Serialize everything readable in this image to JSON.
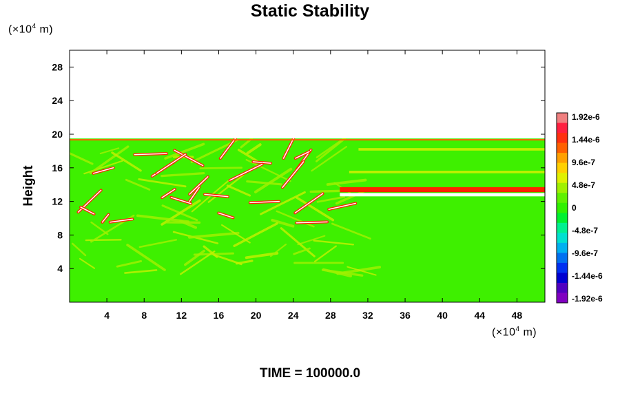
{
  "chart_data": {
    "type": "heatmap",
    "title": "Static Stability",
    "ylabel": "Height",
    "x_unit": {
      "prefix": "(×10",
      "exponent": "4",
      "suffix": " m)"
    },
    "y_unit": {
      "prefix": "(×10",
      "exponent": "4",
      "suffix": " m)"
    },
    "xlim": [
      0,
      51
    ],
    "ylim": [
      0,
      30
    ],
    "x_ticks": [
      4,
      8,
      12,
      16,
      20,
      24,
      28,
      32,
      36,
      40,
      44,
      48
    ],
    "y_ticks": [
      4,
      8,
      12,
      16,
      20,
      24,
      28
    ],
    "field_top": 19.5,
    "colorbar": {
      "labels": [
        "1.92e-6",
        "1.44e-6",
        "9.6e-7",
        "4.8e-7",
        "0",
        "-4.8e-7",
        "-9.6e-7",
        "-1.44e-6",
        "-1.92e-6"
      ],
      "values": [
        1.92e-06,
        1.44e-06,
        9.6e-07,
        4.8e-07,
        0,
        -4.8e-07,
        -9.6e-07,
        -1.44e-06,
        -1.92e-06
      ]
    },
    "features": [
      {
        "kind": "band",
        "x": [
          29,
          51
        ],
        "y": 13.4,
        "thickness": 0.6,
        "color": "#ff2000"
      },
      {
        "kind": "band",
        "x": [
          29,
          51
        ],
        "y": 12.8,
        "thickness": 0.4,
        "color": "#ffffff"
      },
      {
        "kind": "band",
        "x": [
          30,
          51
        ],
        "y": 15.5,
        "thickness": 0.3,
        "color": "#bff000"
      },
      {
        "kind": "band",
        "x": [
          31,
          51
        ],
        "y": 18.2,
        "thickness": 0.3,
        "color": "#bff000"
      }
    ],
    "time_text": "TIME = 100000.0"
  }
}
